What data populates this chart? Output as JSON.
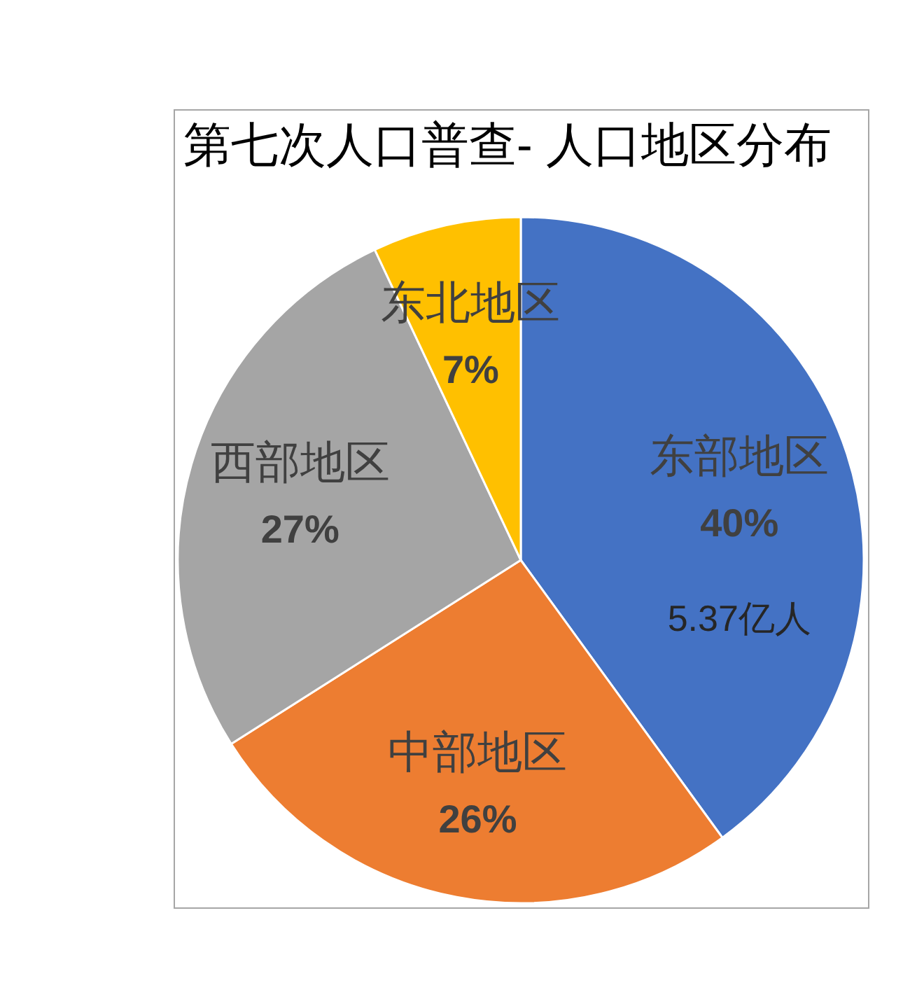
{
  "chart_data": {
    "type": "pie",
    "title": "第七次人口普查- 人口地区分布",
    "categories": [
      "东部地区",
      "中部地区",
      "西部地区",
      "东北地区"
    ],
    "values": [
      40,
      26,
      27,
      7
    ],
    "colors": [
      "#4472c4",
      "#ed7d31",
      "#a5a5a5",
      "#ffc000"
    ],
    "value_labels": [
      "40%",
      "26%",
      "27%",
      "7%"
    ],
    "annotations": [
      {
        "text": "5.37亿人",
        "x": "东部地区"
      }
    ]
  }
}
